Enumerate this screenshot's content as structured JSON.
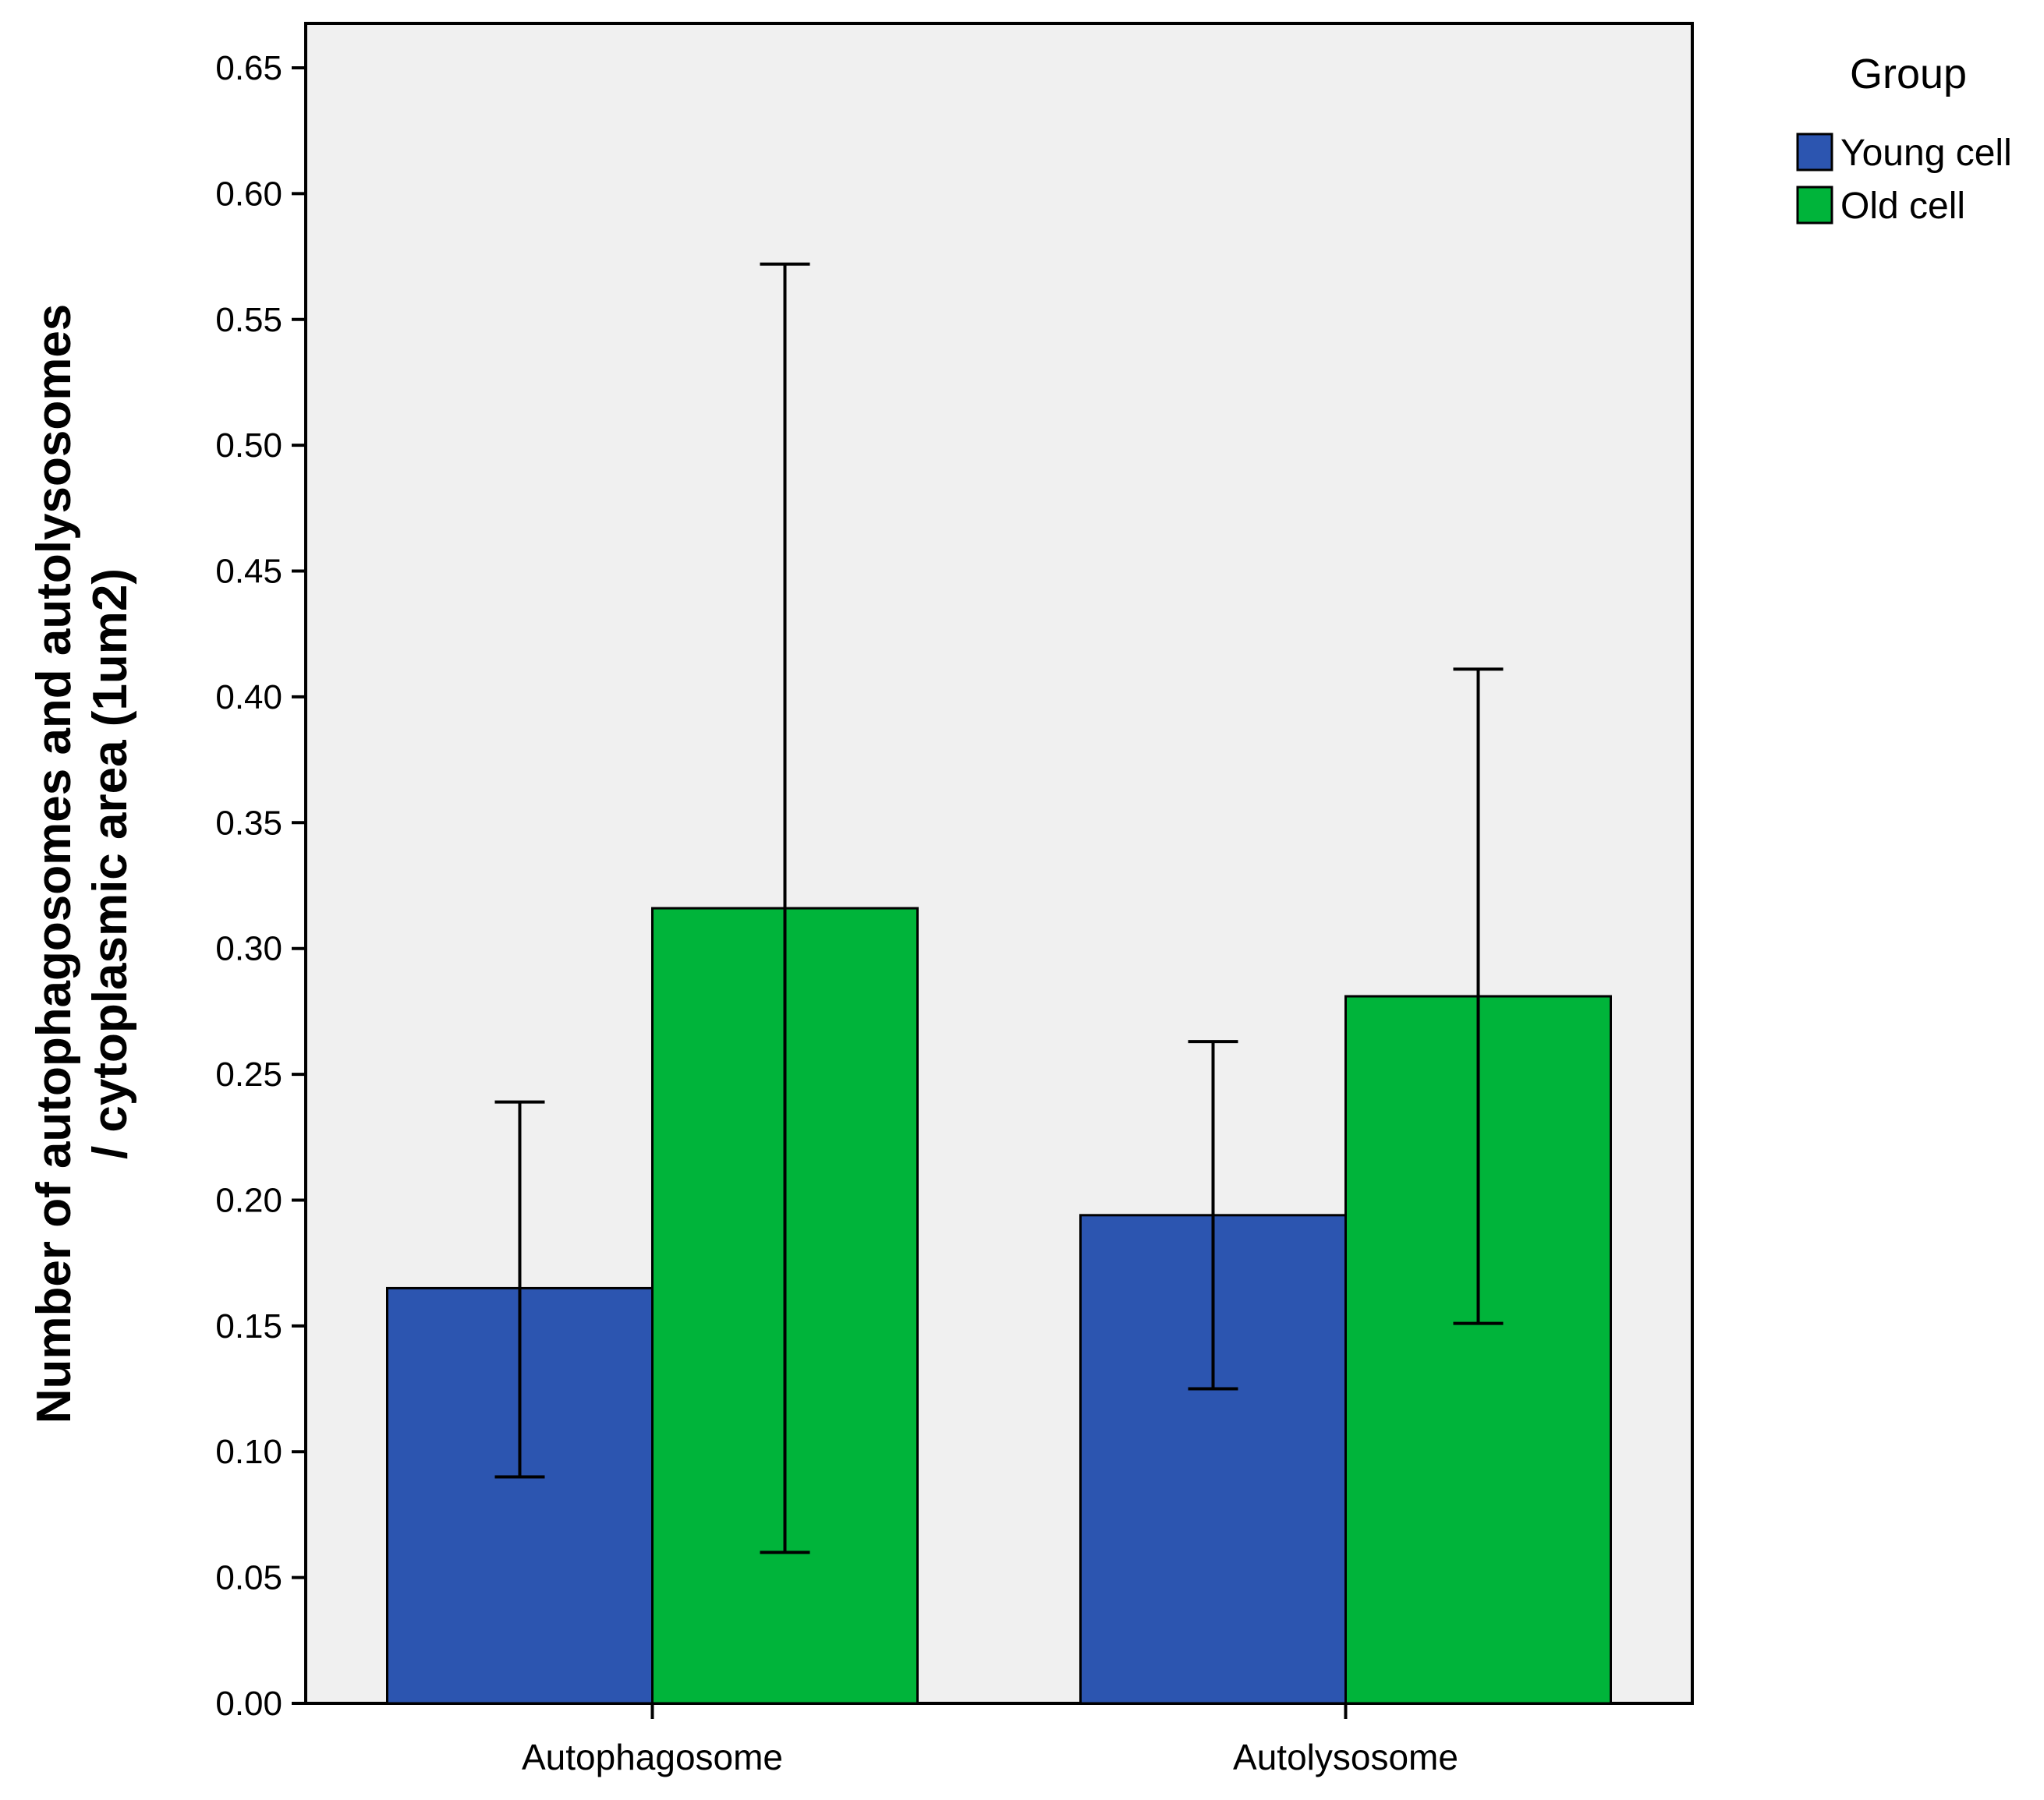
{
  "chart_data": {
    "type": "bar",
    "categories": [
      "Autophagosome",
      "Autolysosome"
    ],
    "series": [
      {
        "name": "Young cell",
        "color": "#2c55b0",
        "values": [
          0.165,
          0.194
        ],
        "error_low": [
          0.09,
          0.125
        ],
        "error_high": [
          0.239,
          0.263
        ]
      },
      {
        "name": "Old cell",
        "color": "#00b43a",
        "values": [
          0.316,
          0.281
        ],
        "error_low": [
          0.06,
          0.151
        ],
        "error_high": [
          0.572,
          0.411
        ]
      }
    ],
    "ylabel_line1": "Number of autophagosomes and autolysosomes",
    "ylabel_line2": "/ cytoplasmic area (1um2)",
    "xlabel": "",
    "ylim": [
      0,
      0.65
    ],
    "yticks": [
      "0.00",
      "0.05",
      "0.10",
      "0.15",
      "0.20",
      "0.25",
      "0.30",
      "0.35",
      "0.40",
      "0.45",
      "0.50",
      "0.55",
      "0.60",
      "0.65"
    ],
    "legend_title": "Group",
    "legend_position": "top-right",
    "plot_background": "#f0f0f0",
    "grid": false
  }
}
